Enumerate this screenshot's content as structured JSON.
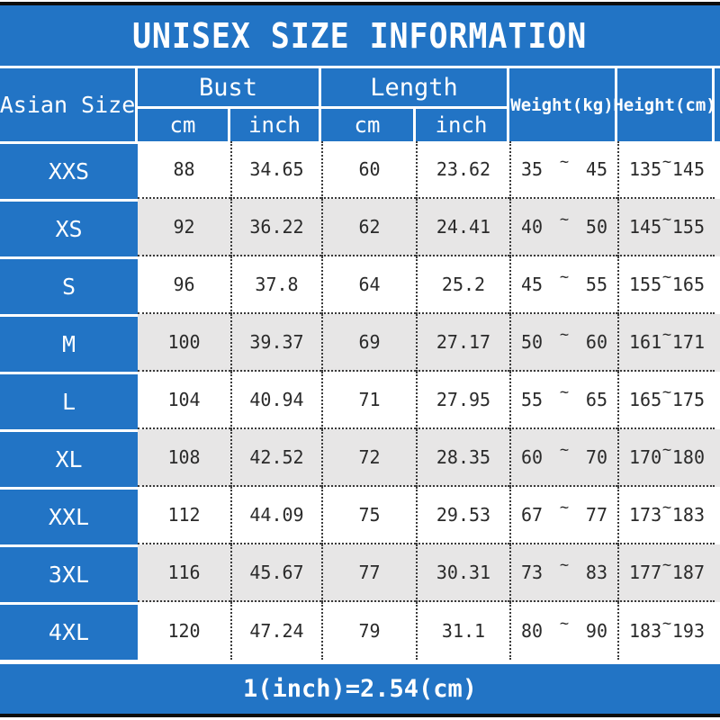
{
  "chart_data": {
    "type": "table",
    "title": "UNISEX SIZE INFORMATION",
    "columns": [
      "Asian Size",
      "Bust cm",
      "Bust inch",
      "Length cm",
      "Length inch",
      "Weight(kg)",
      "Height(cm)"
    ],
    "rows": [
      [
        "XXS",
        88,
        34.65,
        60,
        23.62,
        "35~45",
        "135~145"
      ],
      [
        "XS",
        92,
        36.22,
        62,
        24.41,
        "40~50",
        "145~155"
      ],
      [
        "S",
        96,
        37.8,
        64,
        25.2,
        "45~55",
        "155~165"
      ],
      [
        "M",
        100,
        39.37,
        69,
        27.17,
        "50~60",
        "161~171"
      ],
      [
        "L",
        104,
        40.94,
        71,
        27.95,
        "55~65",
        "165~175"
      ],
      [
        "XL",
        108,
        42.52,
        72,
        28.35,
        "60~70",
        "170~180"
      ],
      [
        "XXL",
        112,
        44.09,
        75,
        29.53,
        "67~77",
        "173~183"
      ],
      [
        "3XL",
        116,
        45.67,
        77,
        30.31,
        "73~83",
        "177~187"
      ],
      [
        "4XL",
        120,
        47.24,
        79,
        31.1,
        "80~90",
        "183~193"
      ]
    ],
    "note": "1(inch)=2.54(cm)"
  },
  "title": "UNISEX SIZE INFORMATION",
  "header": {
    "size_col": "Asian Size",
    "bust": "Bust",
    "length": "Length",
    "cm": "cm",
    "inch": "inch",
    "weight": "Weight(kg)",
    "height": "Height(cm)"
  },
  "tilde": "~",
  "rows": [
    {
      "size": "XXS",
      "bust_cm": "88",
      "bust_in": "34.65",
      "len_cm": "60",
      "len_in": "23.62",
      "w_lo": "35",
      "w_hi": "45",
      "h_lo": "135",
      "h_hi": "145"
    },
    {
      "size": "XS",
      "bust_cm": "92",
      "bust_in": "36.22",
      "len_cm": "62",
      "len_in": "24.41",
      "w_lo": "40",
      "w_hi": "50",
      "h_lo": "145",
      "h_hi": "155"
    },
    {
      "size": "S",
      "bust_cm": "96",
      "bust_in": "37.8",
      "len_cm": "64",
      "len_in": "25.2",
      "w_lo": "45",
      "w_hi": "55",
      "h_lo": "155",
      "h_hi": "165"
    },
    {
      "size": "M",
      "bust_cm": "100",
      "bust_in": "39.37",
      "len_cm": "69",
      "len_in": "27.17",
      "w_lo": "50",
      "w_hi": "60",
      "h_lo": "161",
      "h_hi": "171"
    },
    {
      "size": "L",
      "bust_cm": "104",
      "bust_in": "40.94",
      "len_cm": "71",
      "len_in": "27.95",
      "w_lo": "55",
      "w_hi": "65",
      "h_lo": "165",
      "h_hi": "175"
    },
    {
      "size": "XL",
      "bust_cm": "108",
      "bust_in": "42.52",
      "len_cm": "72",
      "len_in": "28.35",
      "w_lo": "60",
      "w_hi": "70",
      "h_lo": "170",
      "h_hi": "180"
    },
    {
      "size": "XXL",
      "bust_cm": "112",
      "bust_in": "44.09",
      "len_cm": "75",
      "len_in": "29.53",
      "w_lo": "67",
      "w_hi": "77",
      "h_lo": "173",
      "h_hi": "183"
    },
    {
      "size": "3XL",
      "bust_cm": "116",
      "bust_in": "45.67",
      "len_cm": "77",
      "len_in": "30.31",
      "w_lo": "73",
      "w_hi": "83",
      "h_lo": "177",
      "h_hi": "187"
    },
    {
      "size": "4XL",
      "bust_cm": "120",
      "bust_in": "47.24",
      "len_cm": "79",
      "len_in": "31.1",
      "w_lo": "80",
      "w_hi": "90",
      "h_lo": "183",
      "h_hi": "193"
    }
  ],
  "footer_note": "1(inch)=2.54(cm)",
  "colors": {
    "blue": "#2274c5",
    "row": "#ffffff",
    "alt_row": "#e7e6e6",
    "frame": "#0d0d0d",
    "text": "#2a2a2a",
    "header_text": "#ffffff"
  }
}
